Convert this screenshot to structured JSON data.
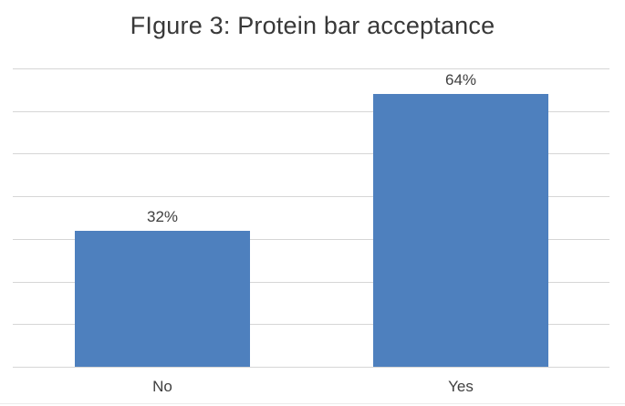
{
  "chart_data": {
    "type": "bar",
    "title": "FIgure 3: Protein bar acceptance",
    "categories": [
      "No",
      "Yes"
    ],
    "values": [
      32,
      64
    ],
    "data_labels": [
      "32%",
      "64%"
    ],
    "xlabel": "",
    "ylabel": "",
    "ylim": [
      0,
      70
    ],
    "gridline_step": 10,
    "grid": "horizontal-only",
    "y_axis_tick_labels_visible": false,
    "legend_position": "none",
    "colors": {
      "bar": "#4e80be",
      "gridline": "#d6d6d6",
      "title_text": "#383838",
      "label_text": "#3f3f3f",
      "background": "#ffffff"
    }
  }
}
